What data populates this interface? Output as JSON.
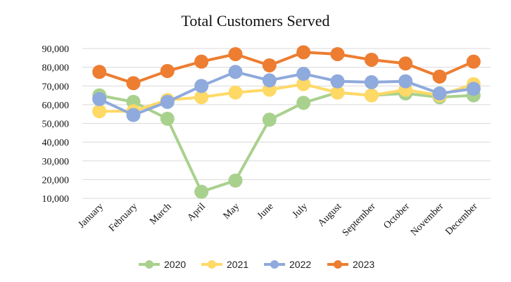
{
  "chart_data": {
    "type": "line",
    "title": "Total Customers Served",
    "xlabel": "",
    "ylabel": "",
    "categories": [
      "January",
      "February",
      "March",
      "April",
      "May",
      "June",
      "July",
      "August",
      "September",
      "October",
      "November",
      "December"
    ],
    "y_ticks": [
      "10,000",
      "20,000",
      "30,000",
      "40,000",
      "50,000",
      "60,000",
      "70,000",
      "80,000",
      "90,000"
    ],
    "ylim": [
      10000,
      90000
    ],
    "grid": true,
    "legend_position": "bottom",
    "series": [
      {
        "name": "2020",
        "color": "#a9d18e",
        "values": [
          65000,
          61500,
          52500,
          13500,
          19500,
          52000,
          61000,
          66500,
          65000,
          66000,
          64000,
          65000
        ]
      },
      {
        "name": "2021",
        "color": "#ffd966",
        "values": [
          56500,
          56500,
          62500,
          64000,
          66500,
          68000,
          71000,
          66500,
          65000,
          68000,
          65000,
          71000
        ]
      },
      {
        "name": "2022",
        "color": "#8faadc",
        "values": [
          63000,
          54500,
          61500,
          70000,
          77500,
          73000,
          76500,
          72500,
          72000,
          72500,
          66000,
          68500
        ]
      },
      {
        "name": "2023",
        "color": "#ed7d31",
        "values": [
          77500,
          71500,
          78000,
          83000,
          87000,
          81000,
          88000,
          87000,
          84000,
          82000,
          75000,
          83000
        ]
      }
    ]
  }
}
